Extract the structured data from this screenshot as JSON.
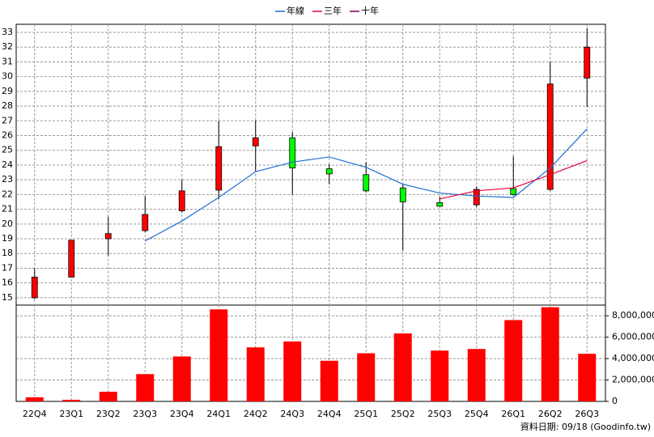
{
  "chart_data": {
    "type": "candlestick",
    "categories": [
      "22Q4",
      "23Q1",
      "23Q2",
      "23Q3",
      "23Q4",
      "24Q1",
      "24Q2",
      "24Q3",
      "24Q4",
      "25Q1",
      "25Q2",
      "25Q3",
      "25Q4",
      "26Q1",
      "26Q2",
      "26Q3"
    ],
    "open": [
      15.0,
      16.4,
      19.0,
      19.55,
      20.9,
      22.3,
      25.3,
      25.85,
      23.75,
      23.35,
      22.45,
      21.45,
      21.3,
      22.4,
      22.35,
      29.9
    ],
    "high": [
      17.0,
      18.9,
      20.5,
      21.9,
      23.0,
      27.0,
      27.05,
      26.25,
      24.05,
      24.2,
      22.7,
      21.85,
      22.55,
      24.6,
      31.0,
      33.3
    ],
    "low": [
      14.9,
      16.4,
      17.85,
      19.45,
      20.8,
      21.7,
      23.6,
      22.0,
      22.7,
      22.15,
      18.2,
      21.2,
      21.15,
      21.95,
      22.25,
      27.95
    ],
    "close": [
      16.4,
      18.9,
      19.35,
      20.65,
      22.25,
      25.25,
      25.85,
      23.8,
      23.4,
      22.25,
      21.5,
      21.2,
      22.35,
      22.0,
      29.5,
      32.0
    ],
    "up_color": "#ff0000",
    "down_color": "#00ff00",
    "series": [
      {
        "name": "年線",
        "color": "#1e6fd0",
        "values": [
          null,
          null,
          null,
          18.85,
          20.2,
          21.8,
          23.55,
          24.2,
          24.55,
          23.85,
          22.7,
          22.1,
          21.9,
          21.8,
          23.8,
          26.45
        ]
      },
      {
        "name": "三年",
        "color": "#e8003a",
        "values": [
          null,
          null,
          null,
          null,
          null,
          null,
          null,
          null,
          null,
          null,
          null,
          21.7,
          22.25,
          22.45,
          23.35,
          24.3
        ]
      },
      {
        "name": "十年",
        "color": "#7a0050",
        "values": [
          null,
          null,
          null,
          null,
          null,
          null,
          null,
          null,
          null,
          null,
          null,
          null,
          null,
          null,
          null,
          null
        ]
      }
    ],
    "ylim": [
      14.5,
      33.55
    ],
    "yticks": [
      15,
      16,
      17,
      18,
      19,
      20,
      21,
      22,
      23,
      24,
      25,
      26,
      27,
      28,
      29,
      30,
      31,
      32,
      33
    ],
    "grid": true,
    "legend": "top",
    "volume": {
      "type": "bar",
      "color": "#ff0000",
      "values": [
        380000,
        150000,
        900000,
        2550000,
        4200000,
        8600000,
        5050000,
        5600000,
        3800000,
        4500000,
        6350000,
        4750000,
        4900000,
        7600000,
        8800000,
        4450000
      ],
      "ylim": [
        0,
        9000000
      ],
      "yticks": [
        0,
        {
          "value": 2000000,
          "label": "2,000,000"
        },
        {
          "value": 4000000,
          "label": "4,000,000"
        },
        {
          "value": 6000000,
          "label": "6,000,000"
        },
        {
          "value": 8000000,
          "label": "8,000,000"
        }
      ]
    },
    "source": "資料日期: 09/18  (Goodinfo.tw)"
  }
}
